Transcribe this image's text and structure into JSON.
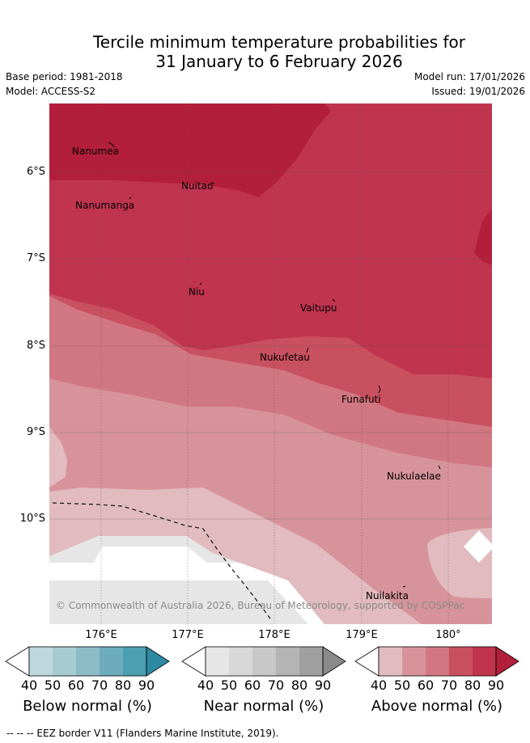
{
  "title": {
    "line1": "Tercile minimum temperature probabilities for",
    "line2": "31 January to 6 February 2026"
  },
  "meta": {
    "base_period": "Base period: 1981-2018",
    "model": "Model: ACCESS-S2",
    "model_run": "Model run: 17/01/2026",
    "issued": "Issued: 19/01/2026"
  },
  "map": {
    "lat_labels": [
      "6°S",
      "7°S",
      "8°S",
      "9°S",
      "10°S"
    ],
    "lon_labels": [
      "176°E",
      "177°E",
      "178°E",
      "179°E",
      "180°"
    ],
    "places": [
      "Nanumea",
      "Nuitao",
      "Nanumanga",
      "Niu",
      "Vaitupu",
      "Nukufetau",
      "Funafuti",
      "Nukulaelae",
      "Nuilakita"
    ],
    "copyright": "© Commonwealth of Australia 2026, Bureau of Meteorology, supported by COSPPac",
    "colors": {
      "above_90": "#b31f3a",
      "above_80": "#c0344e",
      "above_70": "#c9505f",
      "above_60": "#d17781",
      "above_50": "#d7939a",
      "above_40": "#e1bbbf",
      "near": "#e6e6e6"
    }
  },
  "colorbars": {
    "ticks": [
      "40",
      "50",
      "60",
      "70",
      "80",
      "90"
    ],
    "below": {
      "label": "Below normal (%)",
      "colors": [
        "#ffffff",
        "#bdd7dd",
        "#a6cbd1",
        "#8cbcc6",
        "#6cacbb",
        "#4a9fb1",
        "#2e8aa3"
      ]
    },
    "near": {
      "label": "Near normal (%)",
      "colors": [
        "#ffffff",
        "#e6e6e6",
        "#d8d8d8",
        "#c8c8c8",
        "#b4b4b4",
        "#a0a0a0",
        "#8a8a8a"
      ]
    },
    "above": {
      "label": "Above normal (%)",
      "colors": [
        "#ffffff",
        "#e1bbbf",
        "#d7939a",
        "#d17781",
        "#c9505f",
        "#c0344e",
        "#b31f3a"
      ]
    }
  },
  "footer": "-- -- -- EEZ border V11 (Flanders Marine Institute, 2019)."
}
